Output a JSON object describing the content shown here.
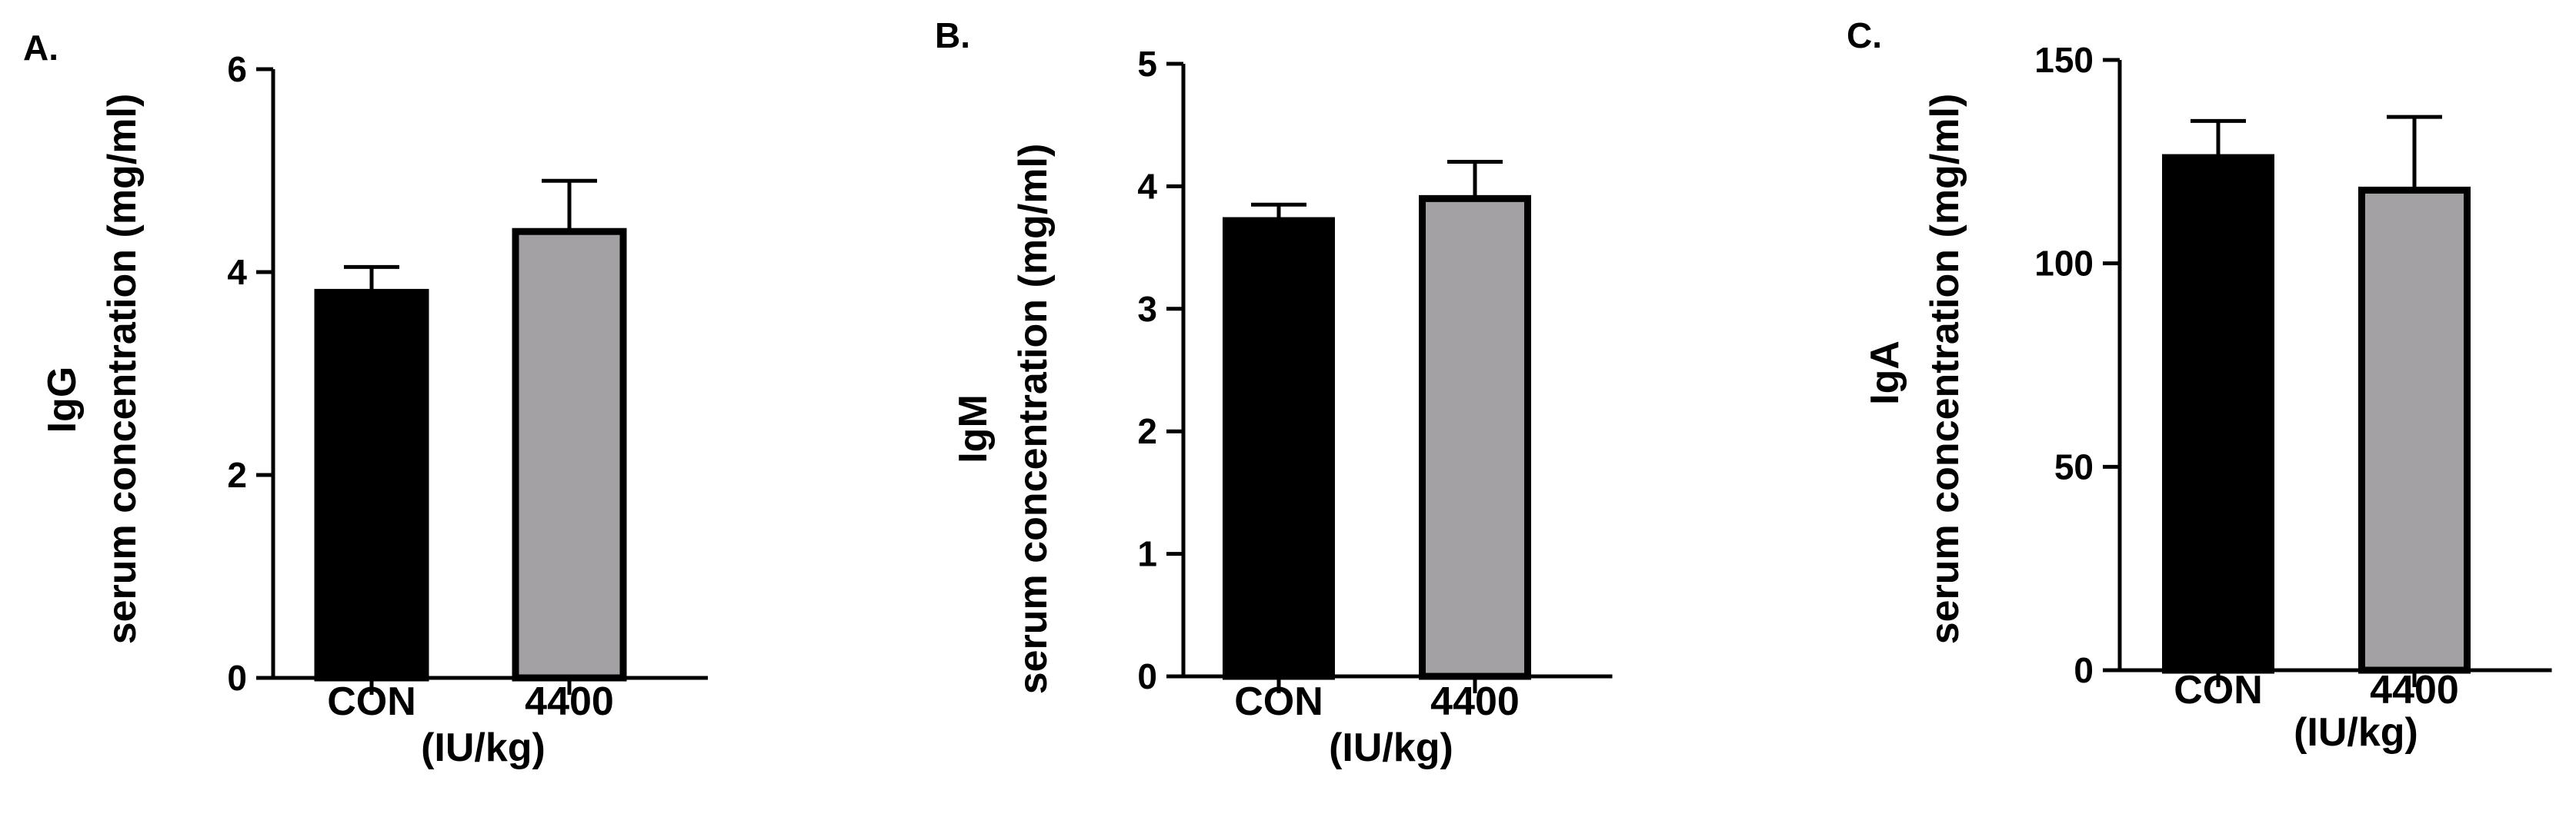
{
  "chart_data": [
    {
      "type": "bar",
      "panel_label": "A.",
      "ylabel_line1": "IgG",
      "ylabel_line2": "serum concentration (mg/ml)",
      "categories": [
        "CON",
        "4400"
      ],
      "x_unit": "(IU/kg)",
      "values": [
        3.8,
        4.4
      ],
      "errors": [
        0.25,
        0.5
      ],
      "bar_colors": [
        "#000000",
        "#a3a1a4"
      ],
      "ylim": [
        0,
        6
      ],
      "yticks": [
        0,
        2,
        4,
        6
      ],
      "ytick_labels": [
        "0",
        "2",
        "4",
        "6"
      ],
      "grid": false
    },
    {
      "type": "bar",
      "panel_label": "B.",
      "ylabel_line1": "IgM",
      "ylabel_line2": "serum concentration (mg/ml)",
      "categories": [
        "CON",
        "4400"
      ],
      "x_unit": "(IU/kg)",
      "values": [
        3.72,
        3.9
      ],
      "errors": [
        0.13,
        0.3
      ],
      "bar_colors": [
        "#000000",
        "#a3a1a4"
      ],
      "ylim": [
        0,
        5
      ],
      "yticks": [
        0,
        1,
        2,
        3,
        4,
        5
      ],
      "ytick_labels": [
        "0",
        "1",
        "2",
        "3",
        "4",
        "5"
      ],
      "grid": false
    },
    {
      "type": "bar",
      "panel_label": "C.",
      "ylabel_line1": "IgA",
      "ylabel_line2": "serum concentration (mg/ml)",
      "categories": [
        "CON",
        "4400"
      ],
      "x_unit": "(IU/kg)",
      "values": [
        126,
        118
      ],
      "errors": [
        9,
        18
      ],
      "bar_colors": [
        "#000000",
        "#a3a1a4"
      ],
      "ylim": [
        0,
        150
      ],
      "yticks": [
        0,
        50,
        100,
        150
      ],
      "ytick_labels": [
        "0",
        "50",
        "100",
        "150"
      ],
      "grid": false
    }
  ]
}
